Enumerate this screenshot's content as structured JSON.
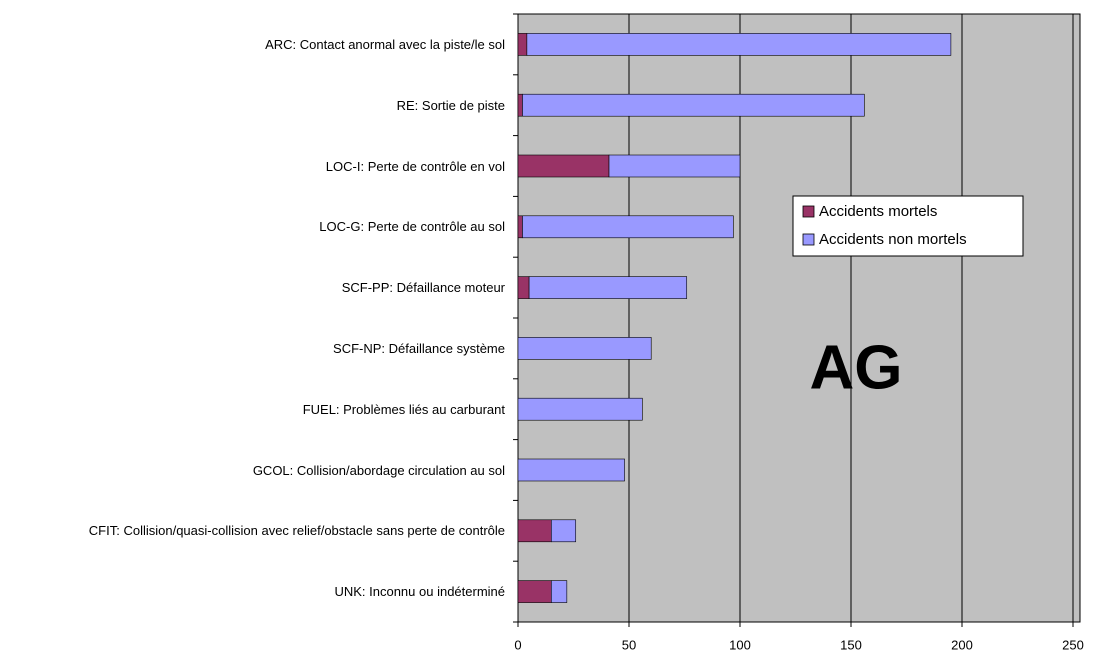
{
  "chart_data": {
    "type": "hbar-stacked",
    "categories": [
      "ARC: Contact anormal avec la piste/le sol",
      "RE: Sortie de piste",
      "LOC-I: Perte de contrôle en vol",
      "LOC-G: Perte de contrôle au sol",
      "SCF-PP: Défaillance moteur",
      "SCF-NP: Défaillance système",
      "FUEL: Problèmes liés au carburant",
      "GCOL: Collision/abordage circulation au sol",
      "CFIT: Collision/quasi-collision avec relief/obstacle sans perte de contrôle",
      "UNK: Inconnu ou indéterminé"
    ],
    "series": [
      {
        "name": "Accidents mortels",
        "color": "#993366",
        "values": [
          4,
          2,
          41,
          2,
          5,
          0,
          0,
          0,
          15,
          15
        ]
      },
      {
        "name": "Accidents non mortels",
        "color": "#9999ff",
        "values": [
          191,
          154,
          59,
          95,
          71,
          60,
          56,
          48,
          11,
          7
        ]
      }
    ],
    "xlim": [
      0,
      250
    ],
    "xticks": [
      0,
      50,
      100,
      150,
      200,
      250
    ],
    "grid": true,
    "legend": "right",
    "annotation": "AG"
  }
}
